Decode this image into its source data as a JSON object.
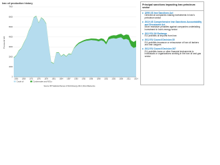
{
  "chart_data": {
    "type": "area",
    "title": "Iran oil production history",
    "y_label": "Thousand b/d",
    "x": [
      1965,
      1966,
      1967,
      1968,
      1969,
      1970,
      1971,
      1972,
      1973,
      1974,
      1975,
      1976,
      1977,
      1978,
      1979,
      1980,
      1981,
      1982,
      1983,
      1984,
      1985,
      1986,
      1987,
      1988,
      1989,
      1990,
      1991,
      1992,
      1993,
      1994,
      1995,
      1996,
      1997,
      1998,
      1999,
      2000,
      2001,
      2002,
      2003,
      2004,
      2005,
      2006,
      2007,
      2008,
      2009,
      2010,
      2011,
      2012,
      2013,
      2014
    ],
    "series": [
      {
        "name": "Crude oil",
        "color": "#b5dcee",
        "values": [
          1908,
          2132,
          2603,
          2840,
          3375,
          3848,
          4572,
          5060,
          5908,
          6067,
          5387,
          5917,
          5707,
          5302,
          3168,
          1479,
          1321,
          2397,
          2442,
          2055,
          2250,
          2035,
          2298,
          2240,
          2810,
          3088,
          3312,
          3429,
          3540,
          3618,
          3643,
          3686,
          3664,
          3634,
          3557,
          3661,
          3572,
          3248,
          3740,
          3834,
          3872,
          3829,
          3911,
          3953,
          3739,
          3800,
          3700,
          3100,
          2900,
          3000
        ]
      },
      {
        "name": "Condensates and NGLs",
        "color": "#3aaa35",
        "values": [
          40,
          40,
          40,
          40,
          40,
          40,
          40,
          40,
          40,
          40,
          40,
          40,
          40,
          40,
          40,
          40,
          40,
          40,
          40,
          40,
          40,
          40,
          40,
          40,
          40,
          100,
          110,
          120,
          130,
          140,
          150,
          160,
          170,
          180,
          190,
          200,
          220,
          240,
          260,
          280,
          300,
          320,
          340,
          360,
          400,
          450,
          500,
          550,
          600,
          650
        ]
      }
    ],
    "xlim": [
      1965,
      2014
    ],
    "xticks": [
      1966,
      1969,
      1972,
      1975,
      1978,
      1981,
      1984,
      1987,
      1990,
      1993,
      1996,
      1999,
      2002,
      2005,
      2008,
      2011,
      2014
    ],
    "ylim": [
      0,
      7000
    ],
    "yticks": [
      0,
      1000,
      2000,
      3000,
      4000,
      5000,
      6000,
      7000
    ],
    "grid": true,
    "stacked": true,
    "legend": "bottom-left",
    "source": "Source: BP Statistical Review of World Energy 2014; Wood Mackenzie"
  },
  "panel": {
    "title": "Principal sanctions impacting Iran petroleum sector",
    "items": [
      {
        "heading": "1996 US Iran Sanctions Act",
        "text": "Directed at companies making investments in Iran's petroleum sector"
      },
      {
        "heading": "2010 US Comprehensive Iran Sanctions Accountability and Divestment Act",
        "text": "More restrictive penalties against companies undertaking investment in Iran's energy sector"
      },
      {
        "heading": "2012 EU Oil Embargo",
        "text": "EU prohibits oil imports from Iran"
      },
      {
        "heading": "2012 EU Council Decision 35",
        "text": "EU prohibits insurance or reinsurance of Iran oil tankers and Iran cargoes"
      },
      {
        "heading": "2012 EU Council Decision 267",
        "text": "EU prohibits loans or other financial instruments to individuals or organizations working in the Iran oil and gas sector"
      }
    ]
  }
}
